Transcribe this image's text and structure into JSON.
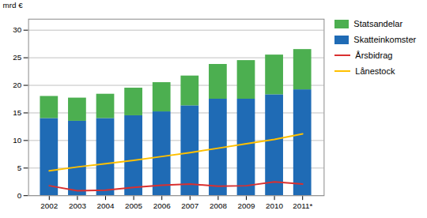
{
  "chart_data": {
    "type": "bar",
    "categories": [
      "2002",
      "2003",
      "2004",
      "2005",
      "2006",
      "2007",
      "2008",
      "2009",
      "2010",
      "2011*"
    ],
    "series": [
      {
        "name": "Skatteinkomster",
        "type": "bar",
        "color": "#1F6BB5",
        "values": [
          14.0,
          13.5,
          14.0,
          14.5,
          15.2,
          16.3,
          17.5,
          17.5,
          18.3,
          19.2
        ]
      },
      {
        "name": "Statsandelar",
        "type": "bar",
        "color": "#4CAF50",
        "values": [
          4.0,
          4.2,
          4.4,
          5.0,
          5.3,
          5.4,
          6.3,
          7.0,
          7.2,
          7.3
        ]
      },
      {
        "name": "Årsbidrag",
        "type": "line",
        "color": "#D93030",
        "values": [
          1.8,
          0.9,
          1.0,
          1.5,
          1.9,
          2.1,
          1.7,
          1.8,
          2.5,
          2.1
        ]
      },
      {
        "name": "Lånestock",
        "type": "line",
        "color": "#FFC000",
        "values": [
          4.5,
          5.2,
          5.8,
          6.4,
          7.1,
          7.8,
          8.6,
          9.4,
          10.2,
          11.2
        ]
      }
    ],
    "y_label": "mrd €",
    "ylim": [
      0,
      32
    ],
    "yticks": [
      0,
      5,
      10,
      15,
      20,
      25,
      30
    ],
    "stacked": true,
    "grid": true,
    "legend": "right"
  }
}
